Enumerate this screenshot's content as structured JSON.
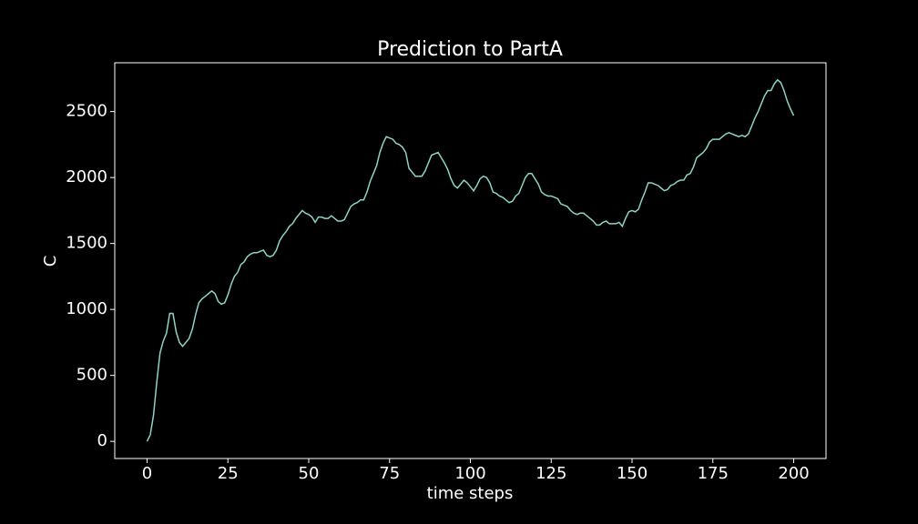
{
  "chart_data": {
    "type": "line",
    "title": "Prediction to PartA",
    "xlabel": "time steps",
    "ylabel": "C",
    "x": [
      0,
      1,
      2,
      3,
      4,
      5,
      6,
      7,
      8,
      9,
      10,
      11,
      12,
      13,
      14,
      15,
      16,
      17,
      18,
      19,
      20,
      21,
      22,
      23,
      24,
      25,
      26,
      27,
      28,
      29,
      30,
      31,
      32,
      33,
      34,
      35,
      36,
      37,
      38,
      39,
      40,
      41,
      42,
      43,
      44,
      45,
      46,
      47,
      48,
      49,
      50,
      51,
      52,
      53,
      54,
      55,
      56,
      57,
      58,
      59,
      60,
      61,
      62,
      63,
      64,
      65,
      66,
      67,
      68,
      69,
      70,
      71,
      72,
      73,
      74,
      75,
      76,
      77,
      78,
      79,
      80,
      81,
      82,
      83,
      84,
      85,
      86,
      87,
      88,
      89,
      90,
      91,
      92,
      93,
      94,
      95,
      96,
      97,
      98,
      99,
      100,
      101,
      102,
      103,
      104,
      105,
      106,
      107,
      108,
      109,
      110,
      111,
      112,
      113,
      114,
      115,
      116,
      117,
      118,
      119,
      120,
      121,
      122,
      123,
      124,
      125,
      126,
      127,
      128,
      129,
      130,
      131,
      132,
      133,
      134,
      135,
      136,
      137,
      138,
      139,
      140,
      141,
      142,
      143,
      144,
      145,
      146,
      147,
      148,
      149,
      150,
      151,
      152,
      153,
      154,
      155,
      156,
      157,
      158,
      159,
      160,
      161,
      162,
      163,
      164,
      165,
      166,
      167,
      168,
      169,
      170,
      171,
      172,
      173,
      174,
      175,
      176,
      177,
      178,
      179,
      180,
      181,
      182,
      183,
      184,
      185,
      186,
      187,
      188,
      189,
      190,
      191,
      192,
      193,
      194,
      195,
      196,
      197,
      198,
      199,
      200
    ],
    "series": [
      {
        "color": "#8dd3c7",
        "values": [
          0,
          50,
          200,
          450,
          670,
          760,
          820,
          970,
          970,
          830,
          750,
          720,
          750,
          780,
          850,
          960,
          1050,
          1080,
          1100,
          1120,
          1140,
          1120,
          1060,
          1040,
          1050,
          1110,
          1190,
          1250,
          1280,
          1340,
          1360,
          1400,
          1420,
          1430,
          1430,
          1440,
          1450,
          1410,
          1400,
          1410,
          1450,
          1520,
          1560,
          1590,
          1630,
          1650,
          1690,
          1720,
          1750,
          1730,
          1720,
          1700,
          1660,
          1700,
          1700,
          1690,
          1690,
          1710,
          1690,
          1670,
          1670,
          1680,
          1730,
          1780,
          1800,
          1810,
          1830,
          1830,
          1890,
          1970,
          2030,
          2090,
          2190,
          2260,
          2310,
          2300,
          2290,
          2260,
          2250,
          2230,
          2190,
          2070,
          2040,
          2010,
          2010,
          2010,
          2050,
          2110,
          2170,
          2180,
          2190,
          2150,
          2110,
          2060,
          1990,
          1940,
          1920,
          1950,
          1980,
          1960,
          1930,
          1900,
          1940,
          1990,
          2010,
          2000,
          1960,
          1890,
          1880,
          1860,
          1850,
          1830,
          1810,
          1820,
          1860,
          1880,
          1940,
          2000,
          2030,
          2030,
          1990,
          1950,
          1890,
          1870,
          1860,
          1860,
          1850,
          1840,
          1800,
          1790,
          1780,
          1750,
          1730,
          1720,
          1730,
          1730,
          1710,
          1690,
          1670,
          1640,
          1640,
          1660,
          1670,
          1650,
          1650,
          1650,
          1660,
          1630,
          1690,
          1740,
          1750,
          1740,
          1760,
          1830,
          1890,
          1960,
          1960,
          1950,
          1940,
          1920,
          1900,
          1910,
          1940,
          1950,
          1970,
          1980,
          1980,
          2020,
          2030,
          2080,
          2150,
          2170,
          2190,
          2220,
          2270,
          2290,
          2290,
          2290,
          2310,
          2330,
          2340,
          2330,
          2320,
          2310,
          2320,
          2310,
          2330,
          2390,
          2450,
          2500,
          2560,
          2620,
          2660,
          2660,
          2710,
          2740,
          2720,
          2660,
          2580,
          2520,
          2470
        ]
      }
    ],
    "xlim": [
      -10,
      210
    ],
    "ylim": [
      -130,
      2870
    ],
    "xticks": [
      0,
      25,
      50,
      75,
      100,
      125,
      150,
      175,
      200
    ],
    "yticks": [
      0,
      500,
      1000,
      1500,
      2000,
      2500
    ]
  }
}
